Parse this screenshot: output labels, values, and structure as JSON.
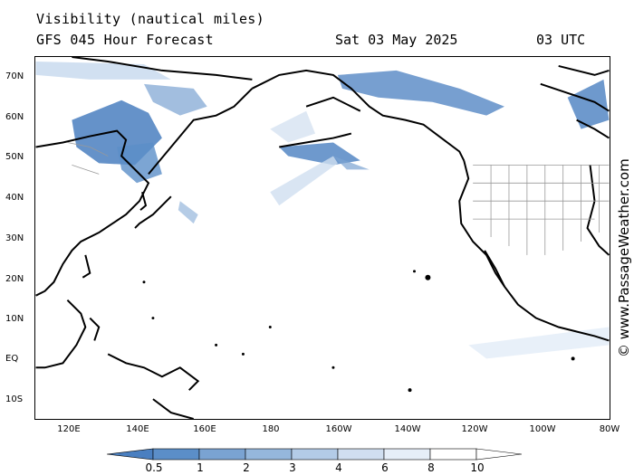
{
  "header": {
    "title": "Visibility (nautical miles)",
    "subtitle": "GFS 045 Hour Forecast",
    "date": "Sat 03 May 2025",
    "time": "03 UTC"
  },
  "watermark": "© www.PassageWeather.com",
  "map": {
    "lat_labels": [
      "70N",
      "60N",
      "50N",
      "40N",
      "30N",
      "20N",
      "10N",
      "EQ",
      "10S"
    ],
    "lon_labels": [
      "120E",
      "140E",
      "160E",
      "180",
      "160W",
      "140W",
      "120W",
      "100W",
      "80W"
    ],
    "land_color": "#ffffff",
    "coast_color": "#000000",
    "border_color": "#888888"
  },
  "legend": {
    "labels": [
      "0.5",
      "1",
      "2",
      "3",
      "4",
      "6",
      "8",
      "10"
    ],
    "colors": [
      "#4a7fc0",
      "#5b8ec8",
      "#7aa3d2",
      "#95b7dc",
      "#b3cbe7",
      "#d0def0",
      "#e6eef8",
      "#ffffff"
    ]
  }
}
